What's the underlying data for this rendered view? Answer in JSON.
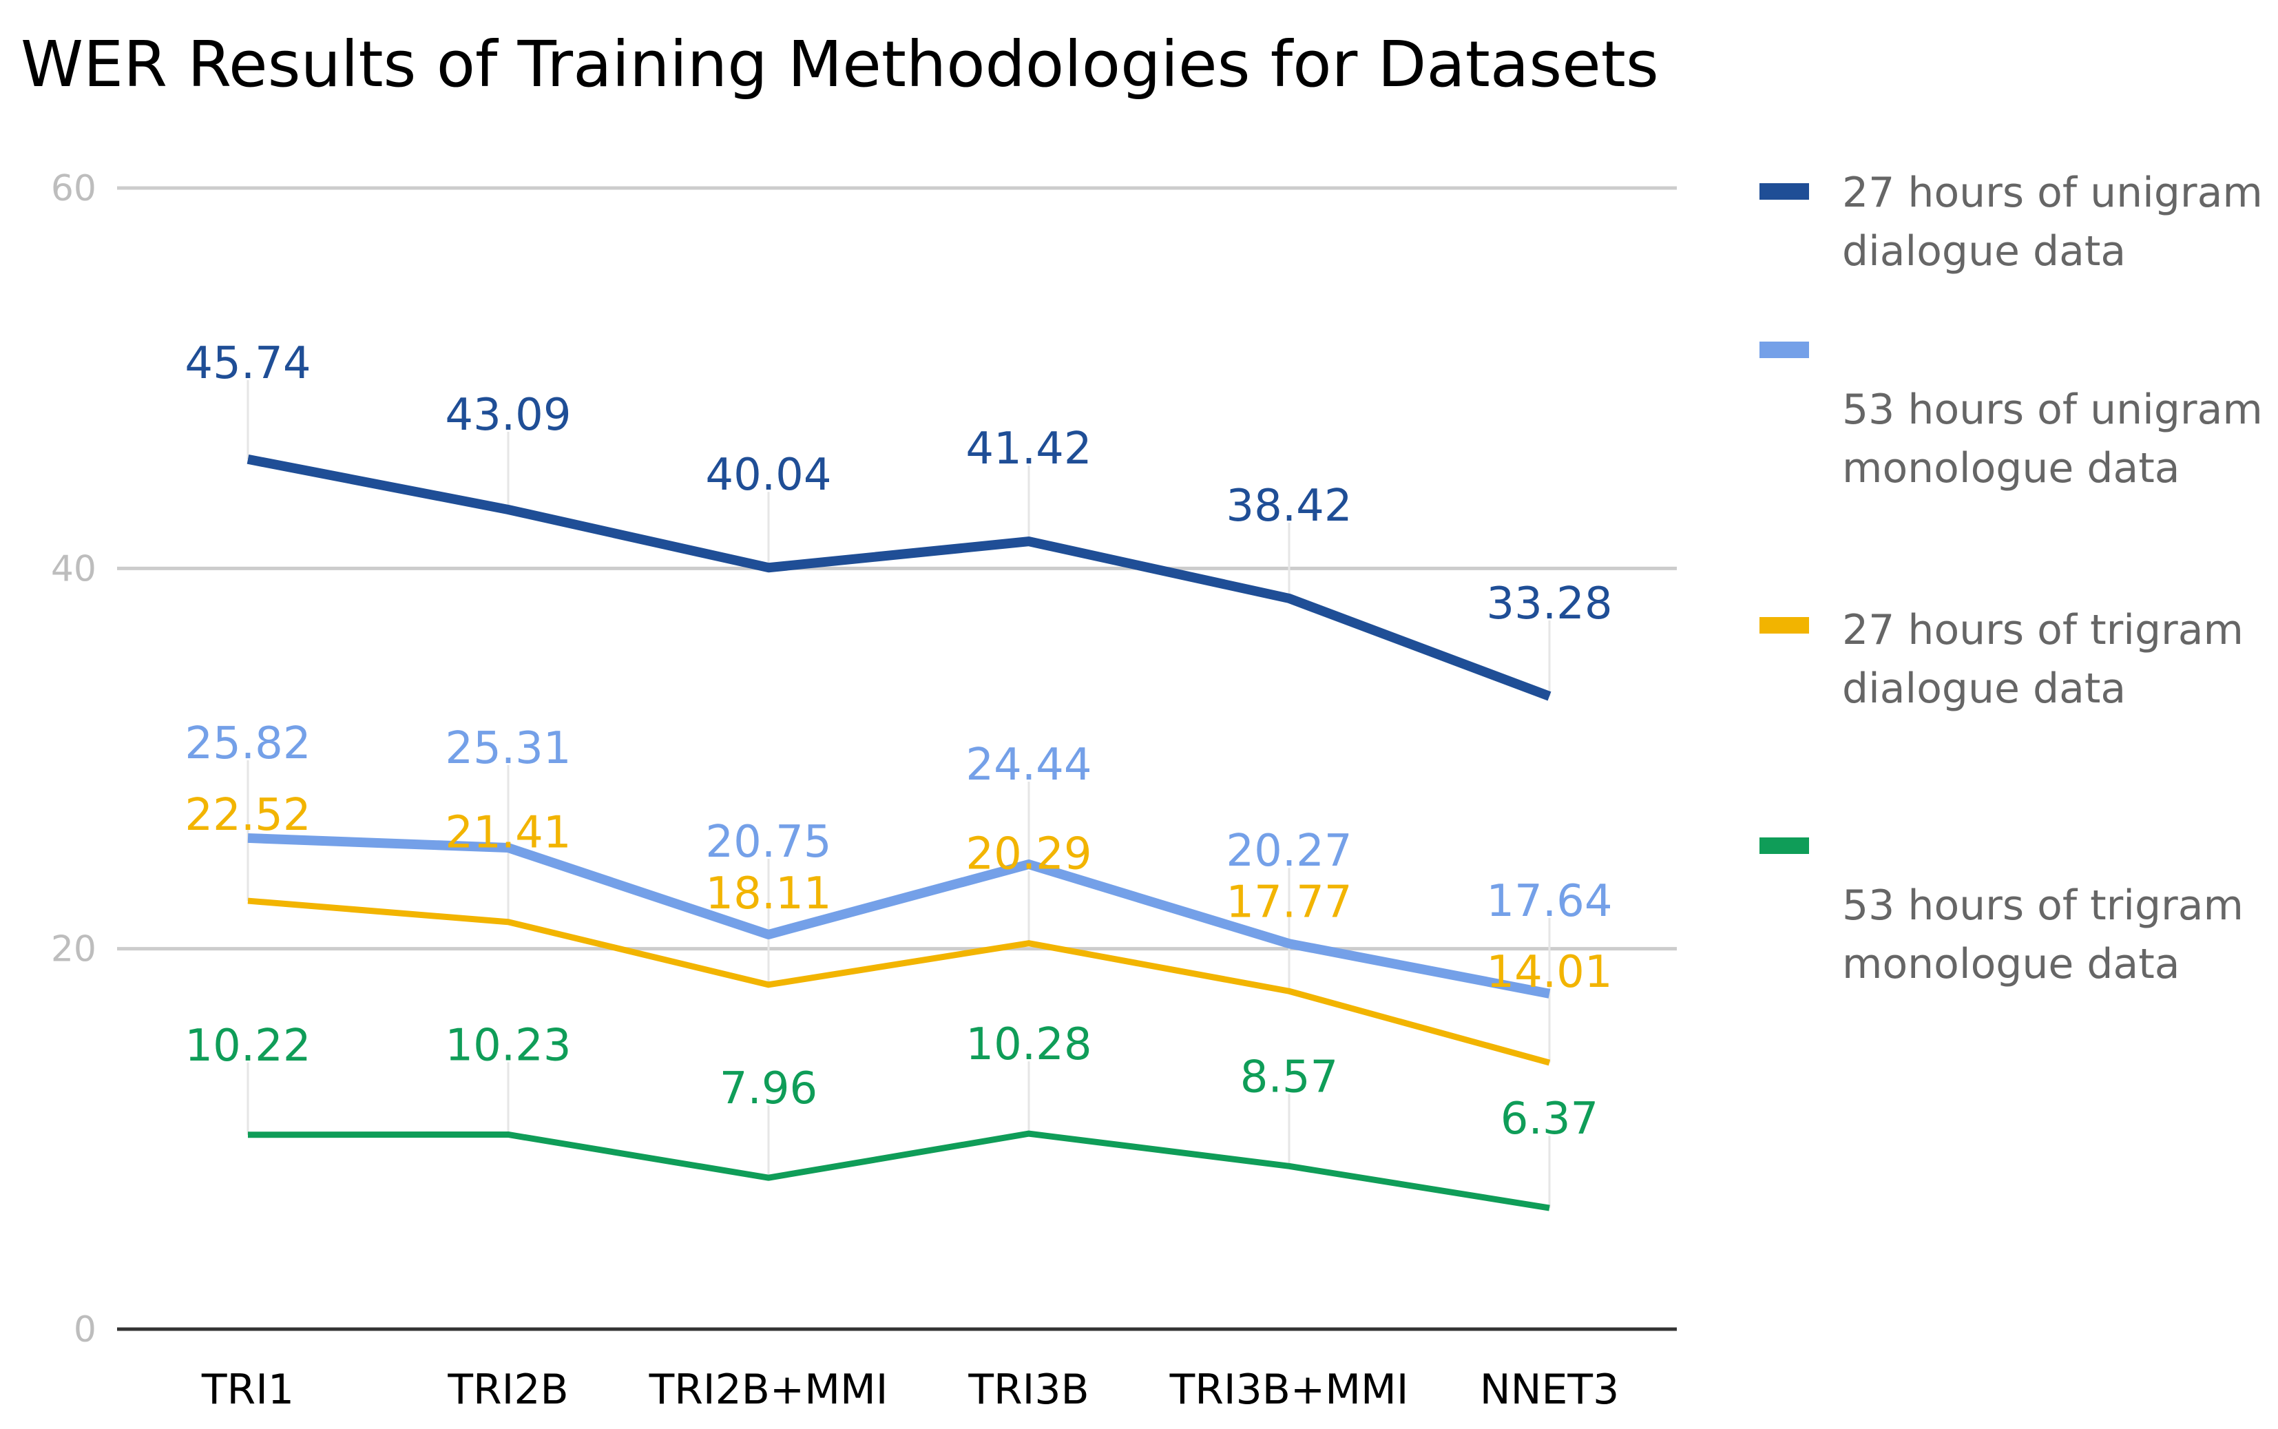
{
  "chart_data": {
    "type": "line",
    "title": "WER Results of Training Methodologies for Datasets",
    "xlabel": "",
    "ylabel": "",
    "categories": [
      "TRI1",
      "TRI2B",
      "TRI2B+MMI",
      "TRI3B",
      "TRI3B+MMI",
      "NNET3"
    ],
    "ylim": [
      0,
      60
    ],
    "yticks": [
      0,
      20,
      40,
      60
    ],
    "grid": true,
    "legend_position": "right",
    "series": [
      {
        "name": "27 hours of unigram dialogue data",
        "name_lines": [
          "27 hours of unigram",
          "dialogue data"
        ],
        "color": "#1f4e96",
        "values": [
          45.74,
          43.09,
          40.04,
          41.42,
          38.42,
          33.28
        ],
        "labels": [
          "45.74",
          "43.09",
          "40.04",
          "41.42",
          "38.42",
          "33.28"
        ]
      },
      {
        "name": "53 hours of unigram monologue data",
        "name_lines": [
          "53 hours of unigram",
          "monologue data"
        ],
        "color": "#74a0e8",
        "values": [
          25.82,
          25.31,
          20.75,
          24.44,
          20.27,
          17.64
        ],
        "labels": [
          "25.82",
          "25.31",
          "20.75",
          "24.44",
          "20.27",
          "17.64"
        ]
      },
      {
        "name": "27 hours of trigram dialogue data",
        "name_lines": [
          "27 hours of trigram",
          "dialogue data"
        ],
        "color": "#f2b400",
        "values": [
          22.52,
          21.41,
          18.11,
          20.29,
          17.77,
          14.01
        ],
        "labels": [
          "22.52",
          "21.41",
          "18.11",
          "20.29",
          "17.77",
          "14.01"
        ]
      },
      {
        "name": "53 hours of trigram monologue data",
        "name_lines": [
          "53 hours of trigram",
          "monologue data"
        ],
        "color": "#0f9d58",
        "values": [
          10.22,
          10.23,
          7.96,
          10.28,
          8.57,
          6.37
        ],
        "labels": [
          "10.22",
          "10.23",
          "7.96",
          "10.28",
          "8.57",
          "6.37"
        ]
      }
    ]
  }
}
